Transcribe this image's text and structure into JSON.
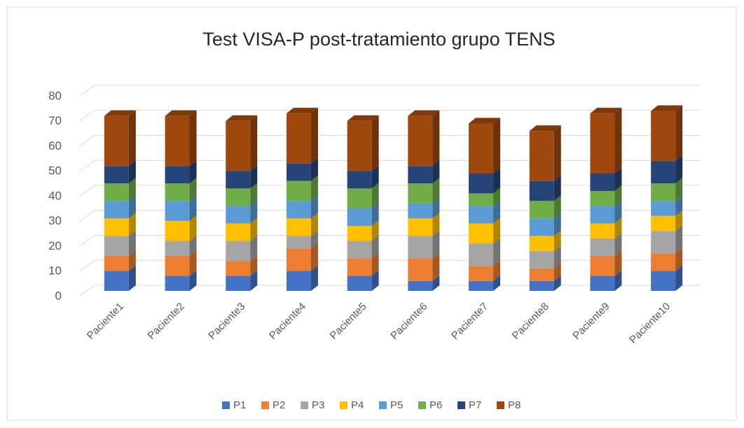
{
  "chart_data": {
    "type": "bar3d_stacked",
    "title": "Test VISA-P post-tratamiento grupo TENS",
    "categories": [
      "Paciente1",
      "Paciente2",
      "Paciente3",
      "Paciente4",
      "Paciente5",
      "Paciente6",
      "Paciente7",
      "Paciente8",
      "Paciente9",
      "Paciente10"
    ],
    "series": [
      {
        "name": "P1",
        "color": "#4472c4",
        "values": [
          8,
          6,
          6,
          8,
          6,
          4,
          4,
          4,
          6,
          8
        ]
      },
      {
        "name": "P2",
        "color": "#ed7d31",
        "values": [
          6,
          8,
          6,
          9,
          7,
          9,
          6,
          5,
          8,
          7
        ]
      },
      {
        "name": "P3",
        "color": "#a5a5a5",
        "values": [
          8,
          6,
          8,
          5,
          7,
          9,
          9,
          7,
          7,
          9
        ]
      },
      {
        "name": "P4",
        "color": "#ffc000",
        "values": [
          7,
          8,
          7,
          7,
          6,
          7,
          8,
          6,
          6,
          6
        ]
      },
      {
        "name": "P5",
        "color": "#5b9bd5",
        "values": [
          7,
          8,
          7,
          7,
          7,
          6,
          7,
          7,
          7,
          6
        ]
      },
      {
        "name": "P6",
        "color": "#70ad47",
        "values": [
          7,
          7,
          7,
          8,
          8,
          8,
          5,
          7,
          6,
          7
        ]
      },
      {
        "name": "P7",
        "color": "#264478",
        "values": [
          7,
          7,
          7,
          7,
          7,
          7,
          8,
          8,
          7,
          9
        ]
      },
      {
        "name": "P8",
        "color": "#9e480e",
        "values": [
          20,
          20,
          20,
          20,
          20,
          20,
          20,
          20,
          24,
          20
        ]
      }
    ],
    "ylim": [
      0,
      80
    ],
    "yticks": [
      0,
      10,
      20,
      30,
      40,
      50,
      60,
      70,
      80
    ],
    "grid": true,
    "legend": "bottom"
  }
}
